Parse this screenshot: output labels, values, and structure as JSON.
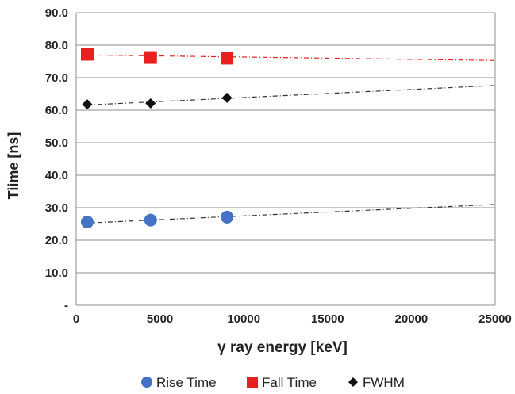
{
  "chart_data": {
    "type": "scatter",
    "title": "",
    "xlabel": "γ ray energy  [keV]",
    "ylabel": "Tiime [ns]",
    "xlim": [
      0,
      25000
    ],
    "ylim": [
      0,
      90
    ],
    "x_ticks": [
      "0",
      "5000",
      "10000",
      "15000",
      "20000",
      "25000"
    ],
    "y_ticks": [
      "-",
      "10.0",
      "20.0",
      "30.0",
      "40.0",
      "50.0",
      "60.0",
      "70.0",
      "80.0",
      "90.0"
    ],
    "grid": "horizontal",
    "legend_position": "bottom",
    "series": [
      {
        "name": "Rise Time",
        "marker": "circle",
        "color": "#4472c4",
        "x": [
          662,
          4440,
          9000
        ],
        "y": [
          25.6,
          26.2,
          27.1
        ],
        "trendline": [
          [
            662,
            25.3
          ],
          [
            25000,
            31.0
          ]
        ]
      },
      {
        "name": "Fall Time",
        "marker": "square",
        "color": "#e8201f",
        "x": [
          662,
          4440,
          9000
        ],
        "y": [
          77.2,
          76.2,
          76.0
        ],
        "trendline": [
          [
            662,
            77.0
          ],
          [
            25000,
            75.3
          ]
        ]
      },
      {
        "name": "FWHM",
        "marker": "diamond",
        "color": "#111111",
        "x": [
          662,
          4440,
          9000
        ],
        "y": [
          61.8,
          62.1,
          63.8
        ],
        "trendline": [
          [
            662,
            61.6
          ],
          [
            25000,
            67.6
          ]
        ]
      }
    ]
  }
}
